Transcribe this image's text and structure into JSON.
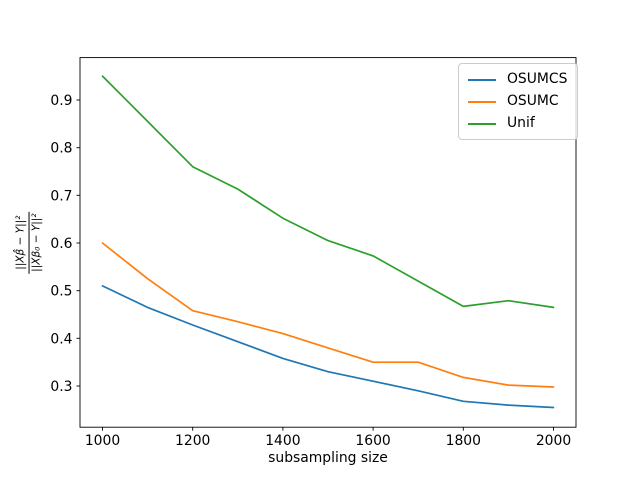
{
  "figure": {
    "background_color": "#ffffff"
  },
  "chart_data": {
    "type": "line",
    "title": "",
    "xlabel": "subsampling size",
    "ylabel_numerator": "||Xβ̂ − Y||²",
    "ylabel_denominator": "||Xβ₀ − Y||²",
    "x": [
      1000,
      1100,
      1200,
      1300,
      1400,
      1500,
      1600,
      1700,
      1800,
      1900,
      2000
    ],
    "series": [
      {
        "name": "OSUMCS",
        "color": "#1f77b4",
        "values": [
          0.51,
          0.465,
          0.428,
          0.393,
          0.358,
          0.33,
          0.31,
          0.29,
          0.268,
          0.26,
          0.255
        ]
      },
      {
        "name": "OSUMC",
        "color": "#ff7f0e",
        "values": [
          0.6,
          0.525,
          0.458,
          0.435,
          0.41,
          0.38,
          0.35,
          0.35,
          0.318,
          0.302,
          0.298
        ]
      },
      {
        "name": "Unif",
        "color": "#2ca02c",
        "values": [
          0.95,
          0.855,
          0.76,
          0.713,
          0.652,
          0.605,
          0.573,
          0.52,
          0.467,
          0.479,
          0.465
        ]
      }
    ],
    "xticks": [
      1000,
      1200,
      1400,
      1600,
      1800,
      2000
    ],
    "yticks": [
      0.3,
      0.4,
      0.5,
      0.6,
      0.7,
      0.8,
      0.9
    ],
    "xlim": [
      950,
      2050
    ],
    "ylim": [
      0.2136,
      0.9889
    ],
    "grid": false,
    "legend": {
      "position": "upper right",
      "entries": [
        "OSUMCS",
        "OSUMC",
        "Unif"
      ]
    }
  }
}
